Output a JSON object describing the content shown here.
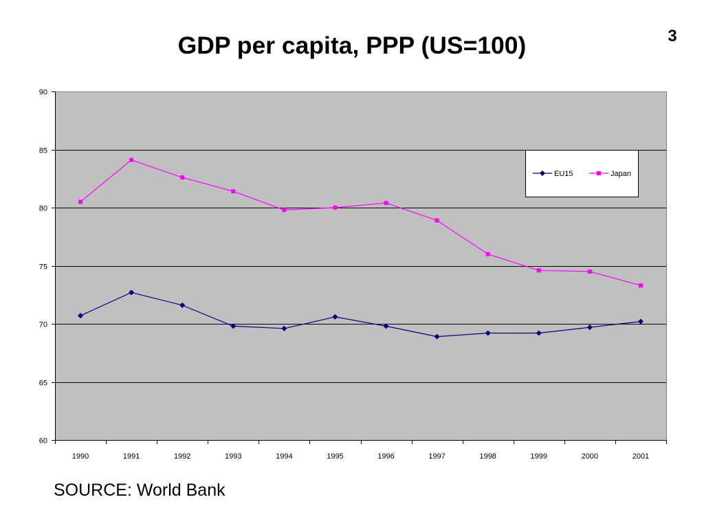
{
  "slide": {
    "page_number": "3",
    "source": "SOURCE: World Bank"
  },
  "chart_data": {
    "type": "line",
    "title": "GDP per capita, PPP (US=100)",
    "categories": [
      "1990",
      "1991",
      "1992",
      "1993",
      "1994",
      "1995",
      "1996",
      "1997",
      "1998",
      "1999",
      "2000",
      "2001"
    ],
    "series": [
      {
        "name": "EU15",
        "color": "#000080",
        "marker": "diamond",
        "values": [
          70.7,
          72.7,
          71.6,
          69.8,
          69.6,
          70.6,
          69.8,
          68.9,
          69.2,
          69.2,
          69.7,
          70.2
        ]
      },
      {
        "name": "Japan",
        "color": "#FF00FF",
        "marker": "square",
        "values": [
          80.5,
          84.1,
          82.6,
          81.4,
          79.8,
          80.0,
          80.4,
          78.9,
          76.0,
          74.6,
          74.5,
          73.3
        ]
      }
    ],
    "ylim": [
      60,
      90
    ],
    "yticks": [
      60,
      65,
      70,
      75,
      80,
      85,
      90
    ],
    "grid": true,
    "legend_position": "top-right",
    "plot_background": "#C0C0C0"
  }
}
